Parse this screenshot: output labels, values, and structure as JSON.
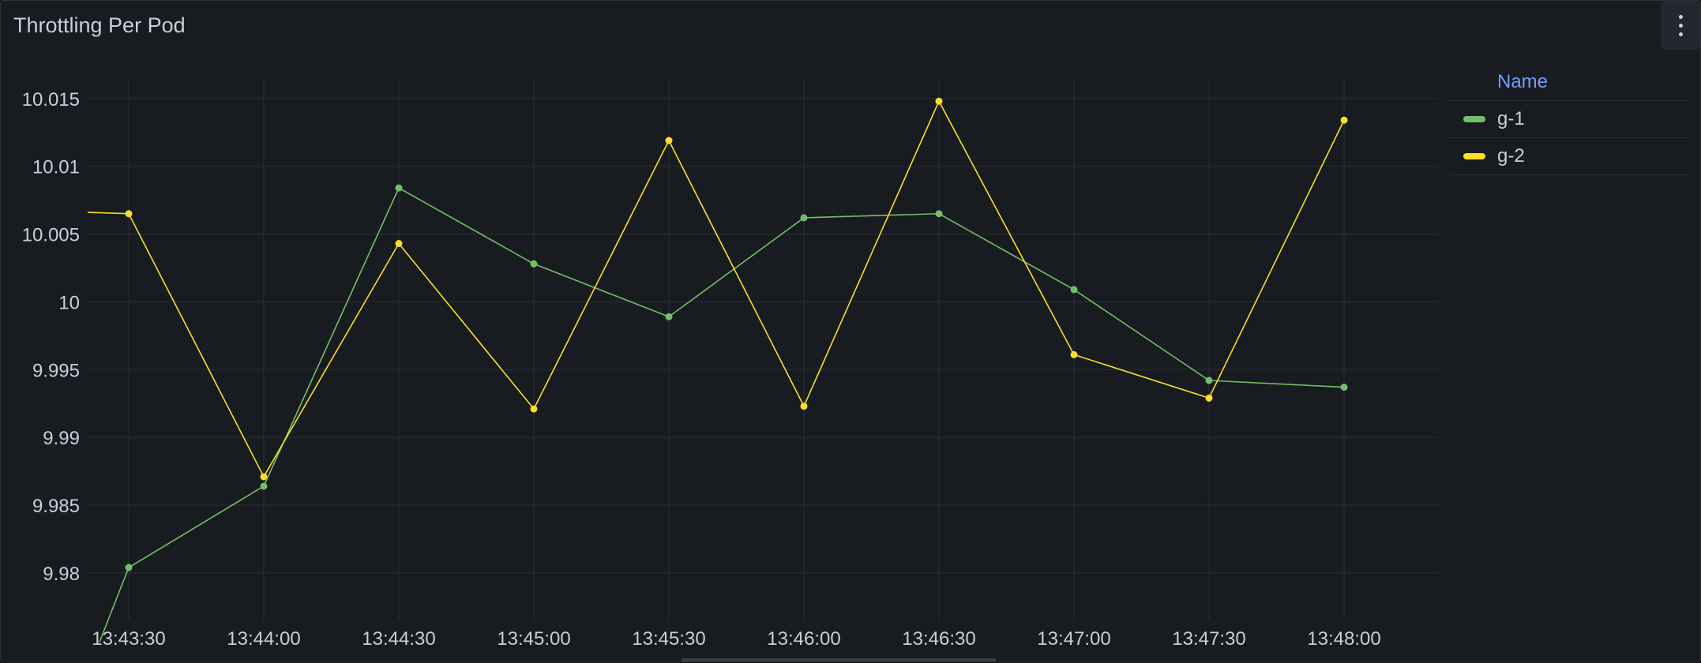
{
  "panel": {
    "title": "Throttling Per Pod"
  },
  "legend": {
    "header": "Name"
  },
  "chart_data": {
    "type": "line",
    "title": "Throttling Per Pod",
    "x": [
      "13:43:30",
      "13:44:00",
      "13:44:30",
      "13:45:00",
      "13:45:30",
      "13:46:00",
      "13:46:30",
      "13:47:00",
      "13:47:30",
      "13:48:00"
    ],
    "xlabel": "",
    "ylabel": "",
    "ylim": [
      9.9765,
      10.0165
    ],
    "yticks": [
      9.98,
      9.985,
      9.99,
      9.995,
      10,
      10.005,
      10.01,
      10.015
    ],
    "ytick_labels": [
      "9.98",
      "9.985",
      "9.99",
      "9.995",
      "10",
      "10.005",
      "10.01",
      "10.015"
    ],
    "grid": true,
    "legend_position": "right",
    "series": [
      {
        "name": "g-1",
        "color": "#73bf69",
        "values": [
          9.9804,
          9.9864,
          10.0084,
          10.0028,
          9.9989,
          10.0062,
          10.0065,
          10.0009,
          9.9942,
          9.9937
        ],
        "entry_value": 9.9749
      },
      {
        "name": "g-2",
        "color": "#fade2a",
        "values": [
          10.0065,
          9.9871,
          10.0043,
          9.9921,
          10.0119,
          9.9923,
          10.0148,
          9.9961,
          9.9929,
          10.0134
        ],
        "entry_value": 10.0066
      }
    ]
  }
}
